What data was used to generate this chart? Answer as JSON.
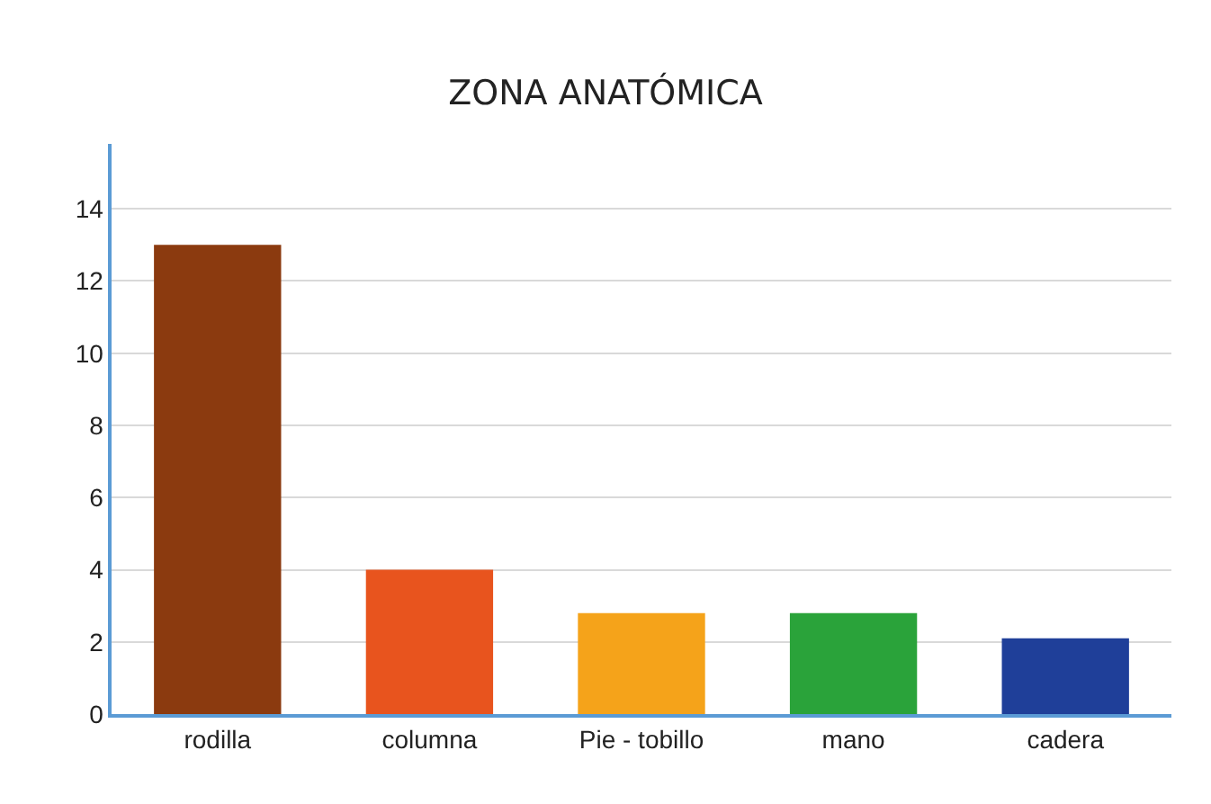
{
  "chart_data": {
    "type": "bar",
    "title": "ZONA ANATÓMICA",
    "categories": [
      "rodilla",
      "columna",
      "Pie - tobillo",
      "mano",
      "cadera"
    ],
    "values": [
      13,
      4,
      2.8,
      2.8,
      2.1
    ],
    "colors": [
      "#8b3a0f",
      "#e8541e",
      "#f5a31a",
      "#2aa33a",
      "#1f3f99"
    ],
    "ylim": [
      0,
      15.8
    ],
    "yticks": [
      0,
      2,
      4,
      6,
      8,
      10,
      12,
      14
    ],
    "grid": "y"
  }
}
